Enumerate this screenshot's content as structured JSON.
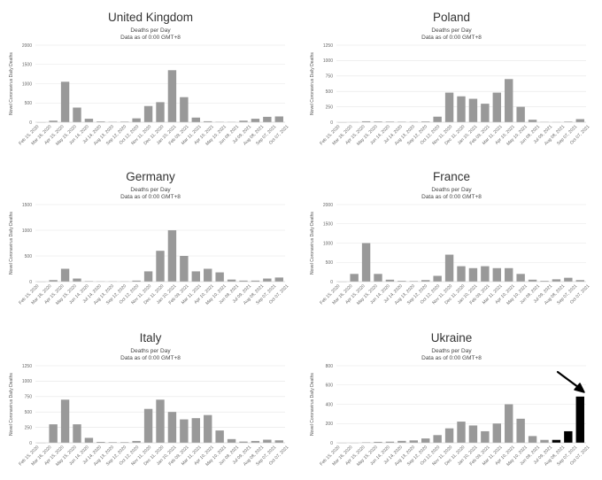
{
  "chart_data": [
    {
      "type": "bar",
      "title": "United Kingdom",
      "subtitle": [
        "Deaths per Day",
        "Data as of 0:00 GMT+8"
      ],
      "ylabel": "Novel Coronavirus Daily Deaths",
      "ylim": [
        0,
        2000
      ],
      "yticks": [
        0,
        500,
        1000,
        1500,
        2000
      ],
      "color": "#999999",
      "x": [
        "Feb 15, 2020",
        "Mar 16, 2020",
        "Apr 15, 2020",
        "May 15, 2020",
        "Jun 14, 2020",
        "Jul 14, 2020",
        "Aug 13, 2020",
        "Sep 12, 2020",
        "Oct 12, 2020",
        "Nov 11, 2020",
        "Dec 11, 2020",
        "Jan 10, 2021",
        "Feb 09, 2021",
        "Mar 11, 2021",
        "Apr 10, 2021",
        "May 10, 2021",
        "Jun 09, 2021",
        "Jul 09, 2021",
        "Aug 08, 2021",
        "Sep 07, 2021",
        "Oct 07, 2021"
      ],
      "x_ticks": [
        "Feb 15, 2020",
        "Mar 16, 2020",
        "Apr 15, 2020",
        "May 15, 2020",
        "Jun 14, 2020",
        "Jul 14, 2020",
        "Aug 13, 2020",
        "Sep 12, 2020",
        "Oct 12, 2020",
        "Nov 11, 2020",
        "Dec 11, 2020",
        "Jan 10, 2021",
        "Feb 09, 2021",
        "Mar 11, 2021",
        "Apr 10, 2021",
        "May 10, 2021",
        "Jun 09, 2021",
        "Jul 09, 2021",
        "Aug 08, 2021",
        "Sep 07, 2021",
        "Oct 07, 2021"
      ],
      "values": [
        0,
        40,
        1050,
        380,
        90,
        20,
        10,
        15,
        100,
        420,
        520,
        1350,
        650,
        120,
        25,
        10,
        8,
        40,
        90,
        140,
        150
      ]
    },
    {
      "type": "bar",
      "title": "Poland",
      "subtitle": [
        "Deaths per Day",
        "Data as of 0:00 GMT+8"
      ],
      "ylabel": "Novel Coronavirus Daily Deaths",
      "ylim": [
        0,
        1250
      ],
      "yticks": [
        0,
        250,
        500,
        750,
        1000,
        1250
      ],
      "color": "#999999",
      "x": [
        "Feb 15, 2020",
        "Mar 16, 2020",
        "Apr 15, 2020",
        "May 15, 2020",
        "Jun 14, 2020",
        "Jul 14, 2020",
        "Aug 13, 2020",
        "Sep 12, 2020",
        "Oct 12, 2020",
        "Nov 11, 2020",
        "Dec 11, 2020",
        "Jan 10, 2021",
        "Feb 09, 2021",
        "Mar 11, 2021",
        "Apr 10, 2021",
        "May 10, 2021",
        "Jun 09, 2021",
        "Jul 09, 2021",
        "Aug 08, 2021",
        "Sep 07, 2021",
        "Oct 07, 2021"
      ],
      "x_ticks": [
        "Feb 15, 2020",
        "Mar 16, 2020",
        "Apr 15, 2020",
        "May 15, 2020",
        "Jun 14, 2020",
        "Jul 14, 2020",
        "Aug 13, 2020",
        "Sep 12, 2020",
        "Oct 12, 2020",
        "Nov 11, 2020",
        "Dec 11, 2020",
        "Jan 10, 2021",
        "Feb 09, 2021",
        "Mar 11, 2021",
        "Apr 10, 2021",
        "May 10, 2021",
        "Jun 09, 2021",
        "Jul 09, 2021",
        "Aug 08, 2021",
        "Sep 07, 2021",
        "Oct 07, 2021"
      ],
      "values": [
        0,
        2,
        15,
        12,
        10,
        8,
        8,
        12,
        90,
        480,
        420,
        380,
        300,
        480,
        700,
        250,
        40,
        5,
        3,
        10,
        50
      ]
    },
    {
      "type": "bar",
      "title": "Germany",
      "subtitle": [
        "Deaths per Day",
        "Data as of 0:00 GMT+8"
      ],
      "ylabel": "Novel Coronavirus Daily Deaths",
      "ylim": [
        0,
        1500
      ],
      "yticks": [
        0,
        500,
        1000,
        1500
      ],
      "color": "#999999",
      "x": [
        "Feb 15, 2020",
        "Mar 16, 2020",
        "Apr 15, 2020",
        "May 15, 2020",
        "Jun 14, 2020",
        "Jul 14, 2020",
        "Aug 13, 2020",
        "Sep 12, 2020",
        "Oct 12, 2020",
        "Nov 11, 2020",
        "Dec 11, 2020",
        "Jan 10, 2021",
        "Feb 09, 2021",
        "Mar 11, 2021",
        "Apr 10, 2021",
        "May 10, 2021",
        "Jun 09, 2021",
        "Jul 09, 2021",
        "Aug 08, 2021",
        "Sep 07, 2021",
        "Oct 07, 2021"
      ],
      "x_ticks": [
        "Feb 15, 2020",
        "Mar 16, 2020",
        "Apr 15, 2020",
        "May 15, 2020",
        "Jun 14, 2020",
        "Jul 14, 2020",
        "Aug 13, 2020",
        "Sep 12, 2020",
        "Oct 12, 2020",
        "Nov 11, 2020",
        "Dec 11, 2020",
        "Jan 10, 2021",
        "Feb 09, 2021",
        "Mar 11, 2021",
        "Apr 10, 2021",
        "May 10, 2021",
        "Jun 09, 2021",
        "Jul 09, 2021",
        "Aug 08, 2021",
        "Sep 07, 2021",
        "Oct 07, 2021"
      ],
      "x_tick_labels": [
        "Feb 15, 2020",
        "Mar 16, 2020",
        "Apr 15, 2020",
        "May 15, 2020",
        "Jun 14, 2020",
        "Jul 14, 2020",
        "Aug 13, 2020",
        "Sep 12, 2020",
        "Oct 12, 2020",
        "Nov 11, 2020",
        "Dec 11, 2020",
        "Jan 10, 2021",
        "Feb 09, 2021",
        "Mar 11, 2021",
        "Apr 10, 2021",
        "May 10, 2021",
        "Jun 09, 2021",
        "Jul 09, 2021",
        "Aug 08, 2021",
        "Sep 07, 2021",
        "Oct 07, 2021"
      ],
      "values": [
        0,
        30,
        250,
        60,
        10,
        5,
        5,
        5,
        20,
        200,
        600,
        1000,
        500,
        200,
        250,
        180,
        40,
        20,
        20,
        60,
        80
      ]
    },
    {
      "type": "bar",
      "title": "France",
      "subtitle": [
        "Deaths per Day",
        "Data as of 0:00 GMT+8"
      ],
      "ylabel": "Novel Coronavirus Daily Deaths",
      "ylim": [
        0,
        2000
      ],
      "yticks": [
        0,
        500,
        1000,
        1500,
        2000
      ],
      "color": "#999999",
      "x": [
        "Feb 15, 2020",
        "Mar 16, 2020",
        "Apr 15, 2020",
        "May 15, 2020",
        "Jun 14, 2020",
        "Jul 14, 2020",
        "Aug 13, 2020",
        "Sep 12, 2020",
        "Oct 12, 2020",
        "Nov 11, 2020",
        "Dec 11, 2020",
        "Jan 10, 2021",
        "Feb 09, 2021",
        "Mar 11, 2021",
        "Apr 10, 2021",
        "May 10, 2021",
        "Jun 09, 2021",
        "Jul 09, 2021",
        "Aug 08, 2021",
        "Sep 07, 2021",
        "Oct 07, 2021"
      ],
      "x_ticks": [
        "Feb 15, 2020",
        "Mar 16, 2020",
        "Apr 15, 2020",
        "May 15, 2020",
        "Jun 14, 2020",
        "Jul 14, 2020",
        "Aug 13, 2020",
        "Sep 12, 2020",
        "Oct 12, 2020",
        "Nov 11, 2020",
        "Dec 11, 2020",
        "Jan 10, 2021",
        "Feb 09, 2021",
        "Mar 11, 2021",
        "Apr 10, 2021",
        "May 10, 2021",
        "Jun 09, 2021",
        "Jul 09, 2021",
        "Aug 08, 2021",
        "Sep 07, 2021",
        "Oct 07, 2021"
      ],
      "values": [
        0,
        200,
        1000,
        200,
        50,
        20,
        15,
        40,
        150,
        700,
        400,
        350,
        400,
        350,
        350,
        200,
        50,
        20,
        60,
        100,
        40
      ]
    },
    {
      "type": "bar",
      "title": "Italy",
      "subtitle": [
        "Deaths per Day",
        "Data as of 0:00 GMT+8"
      ],
      "ylabel": "Novel Coronavirus Daily Deaths",
      "ylim": [
        0,
        1250
      ],
      "yticks": [
        0,
        250,
        500,
        750,
        1000,
        1250
      ],
      "color": "#999999",
      "x": [
        "Feb 15, 2020",
        "Mar 16, 2020",
        "Apr 15, 2020",
        "May 15, 2020",
        "Jun 14, 2020",
        "Jul 14, 2020",
        "Aug 13, 2020",
        "Sep 12, 2020",
        "Oct 12, 2020",
        "Nov 11, 2020",
        "Dec 11, 2020",
        "Jan 10, 2021",
        "Feb 09, 2021",
        "Mar 11, 2021",
        "Apr 10, 2021",
        "May 10, 2021",
        "Jun 09, 2021",
        "Jul 09, 2021",
        "Aug 08, 2021",
        "Sep 07, 2021",
        "Oct 07, 2021"
      ],
      "x_ticks": [
        "Feb 15, 2020",
        "Mar 16, 2020",
        "Apr 15, 2020",
        "May 15, 2020",
        "Jun 14, 2020",
        "Jul 14, 2020",
        "Aug 13, 2020",
        "Sep 12, 2020",
        "Oct 12, 2020",
        "Nov 11, 2020",
        "Dec 11, 2020",
        "Jan 10, 2021",
        "Feb 09, 2021",
        "Mar 11, 2021",
        "Apr 10, 2021",
        "May 10, 2021",
        "Jun 09, 2021",
        "Jul 09, 2021",
        "Aug 08, 2021",
        "Sep 07, 2021",
        "Oct 07, 2021"
      ],
      "values": [
        0,
        300,
        700,
        300,
        80,
        15,
        10,
        10,
        30,
        550,
        700,
        500,
        380,
        400,
        450,
        200,
        60,
        20,
        30,
        50,
        40
      ]
    },
    {
      "type": "bar",
      "title": "Ukraine",
      "subtitle": [
        "Deaths per Day",
        "Data as of 0:00 GMT+8"
      ],
      "ylabel": "Novel Coronavirus Daily Deaths",
      "ylim": [
        0,
        800
      ],
      "yticks": [
        0,
        200,
        400,
        600,
        800
      ],
      "color": "#999999",
      "highlight_color": "#000000",
      "x": [
        "Feb 15, 2020",
        "Mar 16, 2020",
        "Apr 15, 2020",
        "May 15, 2020",
        "Jun 14, 2020",
        "Jul 14, 2020",
        "Aug 13, 2020",
        "Sep 12, 2020",
        "Oct 12, 2020",
        "Nov 11, 2020",
        "Dec 11, 2020",
        "Jan 10, 2021",
        "Feb 09, 2021",
        "Mar 11, 2021",
        "Apr 10, 2021",
        "May 10, 2021",
        "Jun 09, 2021",
        "Jul 09, 2021",
        "Aug 08, 2021",
        "Sep 07, 2021",
        "Oct 07, 2021"
      ],
      "x_ticks": [
        "Feb 15, 2020",
        "Mar 16, 2020",
        "Apr 15, 2020",
        "May 15, 2020",
        "Jun 14, 2020",
        "Jul 14, 2020",
        "Aug 13, 2020",
        "Sep 12, 2020",
        "Oct 12, 2020",
        "Nov 11, 2020",
        "Dec 11, 2020",
        "Jan 10, 2021",
        "Feb 09, 2021",
        "Mar 11, 2021",
        "Apr 10, 2021",
        "May 10, 2021",
        "Jun 09, 2021",
        "Jul 09, 2021",
        "Aug 08, 2021",
        "Sep 07, 2021",
        "Oct 07, 2021"
      ],
      "values": [
        0,
        0,
        5,
        10,
        12,
        20,
        25,
        45,
        80,
        150,
        220,
        180,
        120,
        200,
        400,
        250,
        70,
        30,
        30,
        120,
        480
      ],
      "highlighted_points": [
        "Aug 08, 2021",
        "Sep 07, 2021",
        "Oct 07, 2021"
      ],
      "annotation": "arrow"
    }
  ]
}
